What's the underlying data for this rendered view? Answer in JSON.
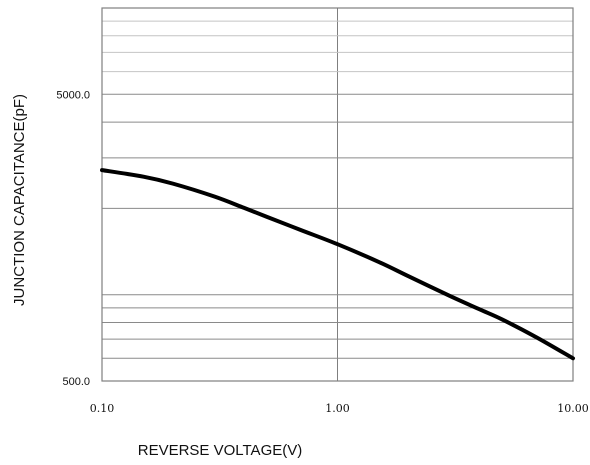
{
  "chart_data": {
    "type": "line",
    "title": "",
    "xlabel": "REVERSE VOLTAGE(V)",
    "ylabel": "JUNCTION CAPACITANCE(pF)",
    "x_scale": "log",
    "y_scale": "log",
    "xlim": [
      0.1,
      10
    ],
    "ylim": [
      500,
      10000
    ],
    "x_tick_labels": [
      "0.10",
      "1.00",
      "10.00"
    ],
    "y_tick_labels": [
      "5000.0",
      "500.0"
    ],
    "grid": true,
    "colors": {
      "line": "#000000",
      "grid": "#7f7f7f",
      "frame": "#7f7f7f"
    },
    "series": [
      {
        "x": [
          0.1,
          0.15,
          0.2,
          0.3,
          0.4,
          0.5,
          0.7,
          1.0,
          1.5,
          2.0,
          3.0,
          4.0,
          5.0,
          7.0,
          10.0
        ],
        "y": [
          2720,
          2580,
          2440,
          2200,
          2010,
          1870,
          1680,
          1500,
          1300,
          1160,
          990,
          890,
          820,
          710,
          600
        ]
      }
    ]
  }
}
